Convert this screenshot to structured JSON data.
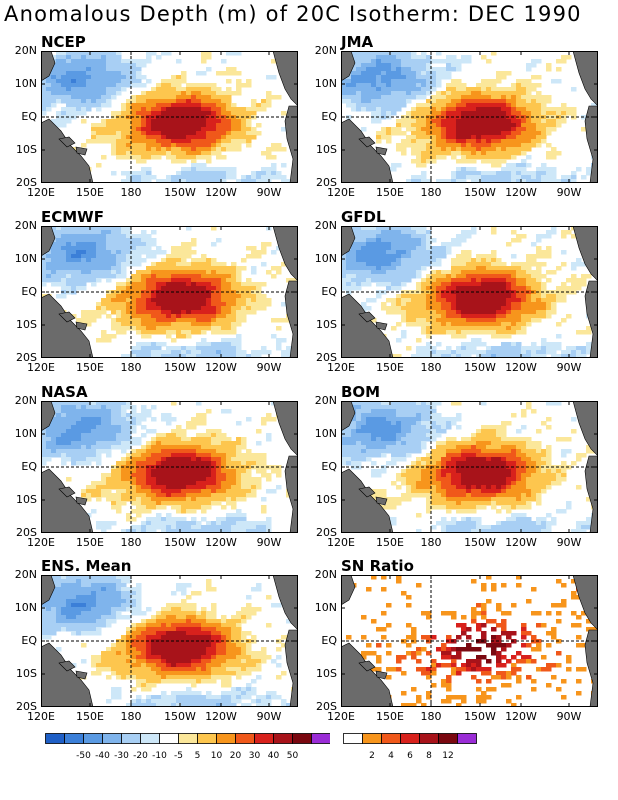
{
  "title": "Anomalous Depth (m) of 20C Isotherm: DEC 1990",
  "axes": {
    "x_ticks": [
      "120E",
      "150E",
      "180",
      "150W",
      "120W",
      "90W"
    ],
    "y_ticks": [
      "20N",
      "10N",
      "EQ",
      "10S",
      "20S"
    ]
  },
  "panels": [
    {
      "label": "NCEP",
      "type": "anomaly"
    },
    {
      "label": "JMA",
      "type": "anomaly"
    },
    {
      "label": "ECMWF",
      "type": "anomaly"
    },
    {
      "label": "GFDL",
      "type": "anomaly"
    },
    {
      "label": "NASA",
      "type": "anomaly"
    },
    {
      "label": "BOM",
      "type": "anomaly"
    },
    {
      "label": "ENS. Mean",
      "type": "anomaly"
    },
    {
      "label": "SN Ratio",
      "type": "ratio"
    }
  ],
  "colorbar_anomaly": {
    "colors": [
      "#1f5fc6",
      "#3b7fd8",
      "#5a9ae3",
      "#7fb4ec",
      "#a8cff4",
      "#cde7f8",
      "#ffffff",
      "#fbe79a",
      "#fdc64e",
      "#f7951c",
      "#f0581a",
      "#d8211c",
      "#a8131a",
      "#7a0810",
      "#9a2cd6"
    ],
    "labels": [
      "-50",
      "-40",
      "-30",
      "-20",
      "-10",
      "-5",
      "5",
      "10",
      "20",
      "30",
      "40",
      "50"
    ]
  },
  "colorbar_ratio": {
    "colors": [
      "#ffffff",
      "#f7951c",
      "#f0581a",
      "#d8211c",
      "#a8131a",
      "#7a0810",
      "#9a2cd6"
    ],
    "labels": [
      "2",
      "4",
      "6",
      "8",
      "12"
    ]
  },
  "colors": {
    "land": "#6b6b6b",
    "ocean_neutral": "#ffffff"
  }
}
